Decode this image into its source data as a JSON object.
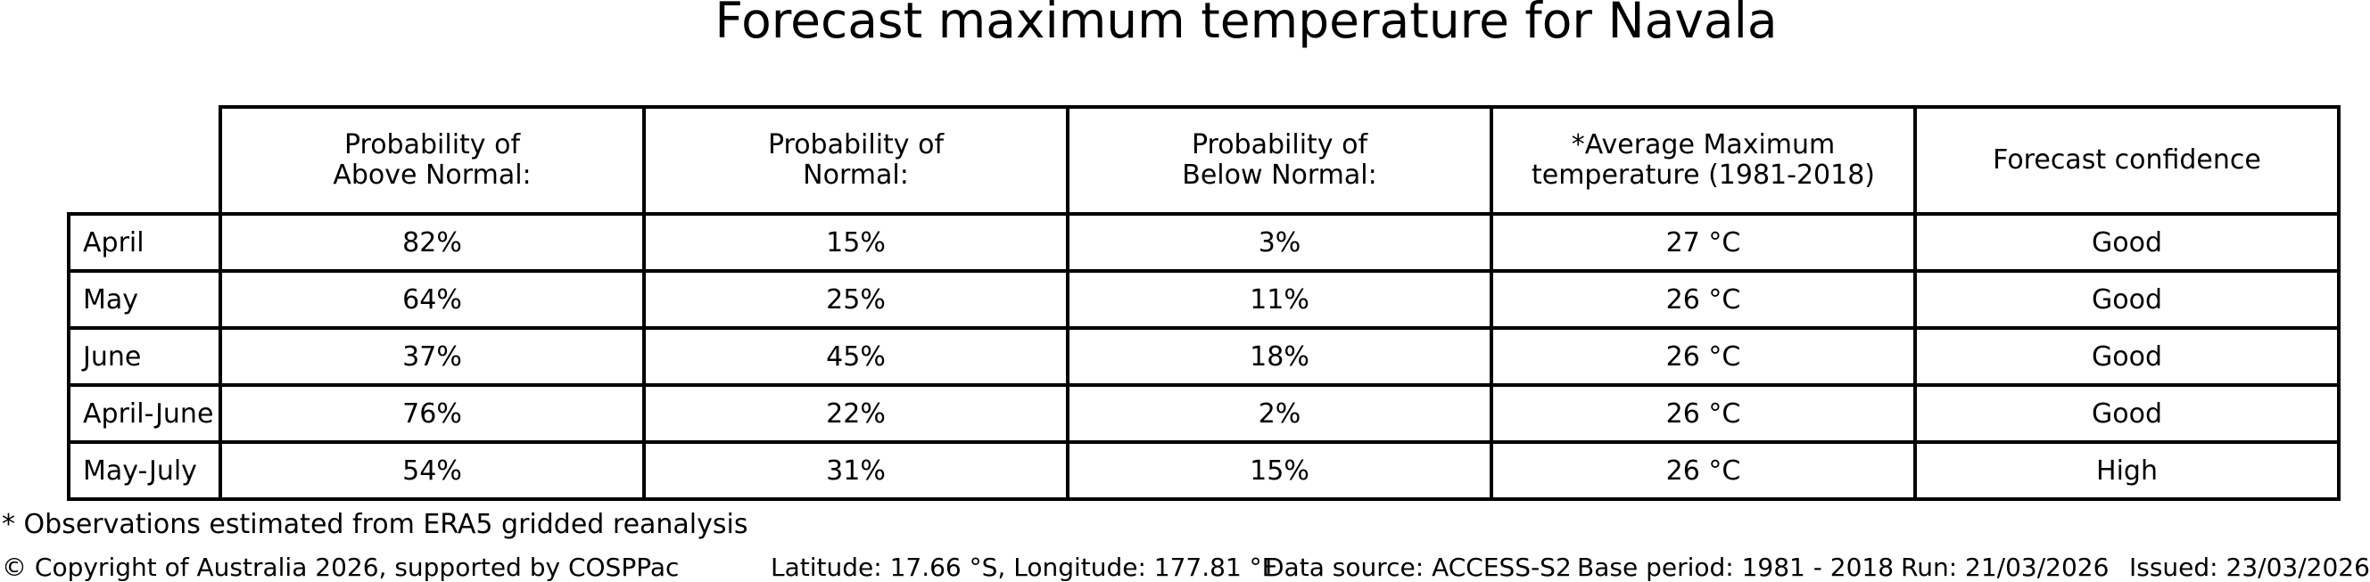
{
  "title": "Forecast maximum temperature for Navala",
  "table": {
    "columns": [
      "Probability of\nAbove Normal:",
      "Probability of\nNormal:",
      "Probability of\nBelow Normal:",
      "*Average Maximum\ntemperature (1981-2018)",
      "Forecast confidence"
    ],
    "rows": [
      {
        "label": "April",
        "above_normal": "82%",
        "normal": "15%",
        "below_normal": "3%",
        "avg_max_temp": "27 °C",
        "confidence": "Good"
      },
      {
        "label": "May",
        "above_normal": "64%",
        "normal": "25%",
        "below_normal": "11%",
        "avg_max_temp": "26 °C",
        "confidence": "Good"
      },
      {
        "label": "June",
        "above_normal": "37%",
        "normal": "45%",
        "below_normal": "18%",
        "avg_max_temp": "26 °C",
        "confidence": "Good"
      },
      {
        "label": "April-June",
        "above_normal": "76%",
        "normal": "22%",
        "below_normal": "2%",
        "avg_max_temp": "26 °C",
        "confidence": "Good"
      },
      {
        "label": "May-July",
        "above_normal": "54%",
        "normal": "31%",
        "below_normal": "15%",
        "avg_max_temp": "26 °C",
        "confidence": "High"
      }
    ]
  },
  "footnote": "* Observations estimated from ERA5 gridded reanalysis",
  "footer": {
    "copyright": "© Copyright of Australia 2026, supported by COSPPac",
    "location": "Latitude: 17.66 °S, Longitude: 177.81 °E",
    "data_source": "Data source: ACCESS-S2",
    "base_period": "Base period: 1981 - 2018",
    "run": "Run: 21/03/2026",
    "issued": "Issued: 23/03/2026"
  },
  "colors": {
    "text": "#000000",
    "background": "#ffffff",
    "table_border": "#000000"
  },
  "chart_data": {
    "type": "table",
    "title": "Forecast maximum temperature for Navala",
    "columns": [
      "Probability of Above Normal:",
      "Probability of Normal:",
      "Probability of Below Normal:",
      "*Average Maximum temperature (1981-2018)",
      "Forecast confidence"
    ],
    "row_labels": [
      "April",
      "May",
      "June",
      "April-June",
      "May-July"
    ],
    "rows": [
      [
        "82%",
        "15%",
        "3%",
        "27 °C",
        "Good"
      ],
      [
        "64%",
        "25%",
        "11%",
        "26 °C",
        "Good"
      ],
      [
        "37%",
        "45%",
        "18%",
        "26 °C",
        "Good"
      ],
      [
        "76%",
        "22%",
        "2%",
        "26 °C",
        "Good"
      ],
      [
        "54%",
        "31%",
        "15%",
        "26 °C",
        "High"
      ]
    ],
    "notes": [
      "* Observations estimated from ERA5 gridded reanalysis",
      "Latitude: 17.66 °S, Longitude: 177.81 °E",
      "Data source: ACCESS-S2",
      "Base period: 1981 - 2018",
      "Run: 21/03/2026",
      "Issued: 23/03/2026"
    ],
    "legend_position": "none",
    "grid": false
  }
}
